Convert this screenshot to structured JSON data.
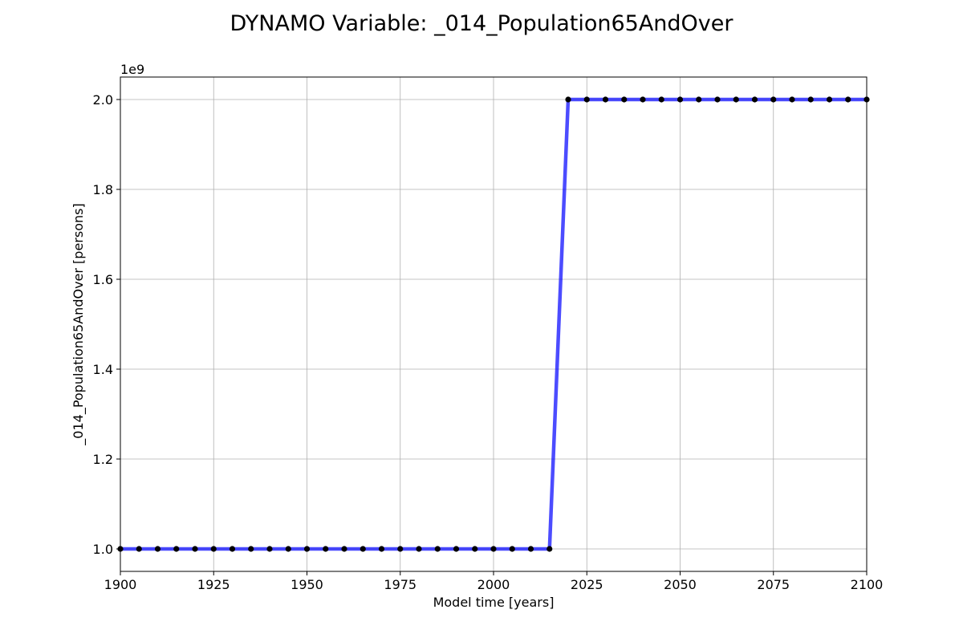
{
  "chart_data": {
    "type": "line",
    "title": "DYNAMO Variable: _014_Population65AndOver",
    "xlabel": "Model time [years]",
    "ylabel": "_014_Population65AndOver [persons]",
    "y_scale_label": "1e9",
    "xlim": [
      1900,
      2100
    ],
    "ylim": [
      0.95,
      2.05
    ],
    "x_ticks": [
      1900,
      1925,
      1950,
      1975,
      2000,
      2025,
      2050,
      2075,
      2100
    ],
    "x_tick_labels": [
      "1900",
      "1925",
      "1950",
      "1975",
      "2000",
      "2025",
      "2050",
      "2075",
      "2100"
    ],
    "y_ticks": [
      1.0,
      1.2,
      1.4,
      1.6,
      1.8,
      2.0
    ],
    "y_tick_labels": [
      "1.0",
      "1.2",
      "1.4",
      "1.6",
      "1.8",
      "2.0"
    ],
    "grid": true,
    "series": [
      {
        "line_color": "#0000ff",
        "marker_color": "#000000",
        "x": [
          1900,
          1905,
          1910,
          1915,
          1920,
          1925,
          1930,
          1935,
          1940,
          1945,
          1950,
          1955,
          1960,
          1965,
          1970,
          1975,
          1980,
          1985,
          1990,
          1995,
          2000,
          2005,
          2010,
          2015,
          2020,
          2025,
          2030,
          2035,
          2040,
          2045,
          2050,
          2055,
          2060,
          2065,
          2070,
          2075,
          2080,
          2085,
          2090,
          2095,
          2100
        ],
        "y": [
          1.0,
          1.0,
          1.0,
          1.0,
          1.0,
          1.0,
          1.0,
          1.0,
          1.0,
          1.0,
          1.0,
          1.0,
          1.0,
          1.0,
          1.0,
          1.0,
          1.0,
          1.0,
          1.0,
          1.0,
          1.0,
          1.0,
          1.0,
          1.0,
          2.0,
          2.0,
          2.0,
          2.0,
          2.0,
          2.0,
          2.0,
          2.0,
          2.0,
          2.0,
          2.0,
          2.0,
          2.0,
          2.0,
          2.0,
          2.0,
          2.0
        ]
      }
    ]
  }
}
